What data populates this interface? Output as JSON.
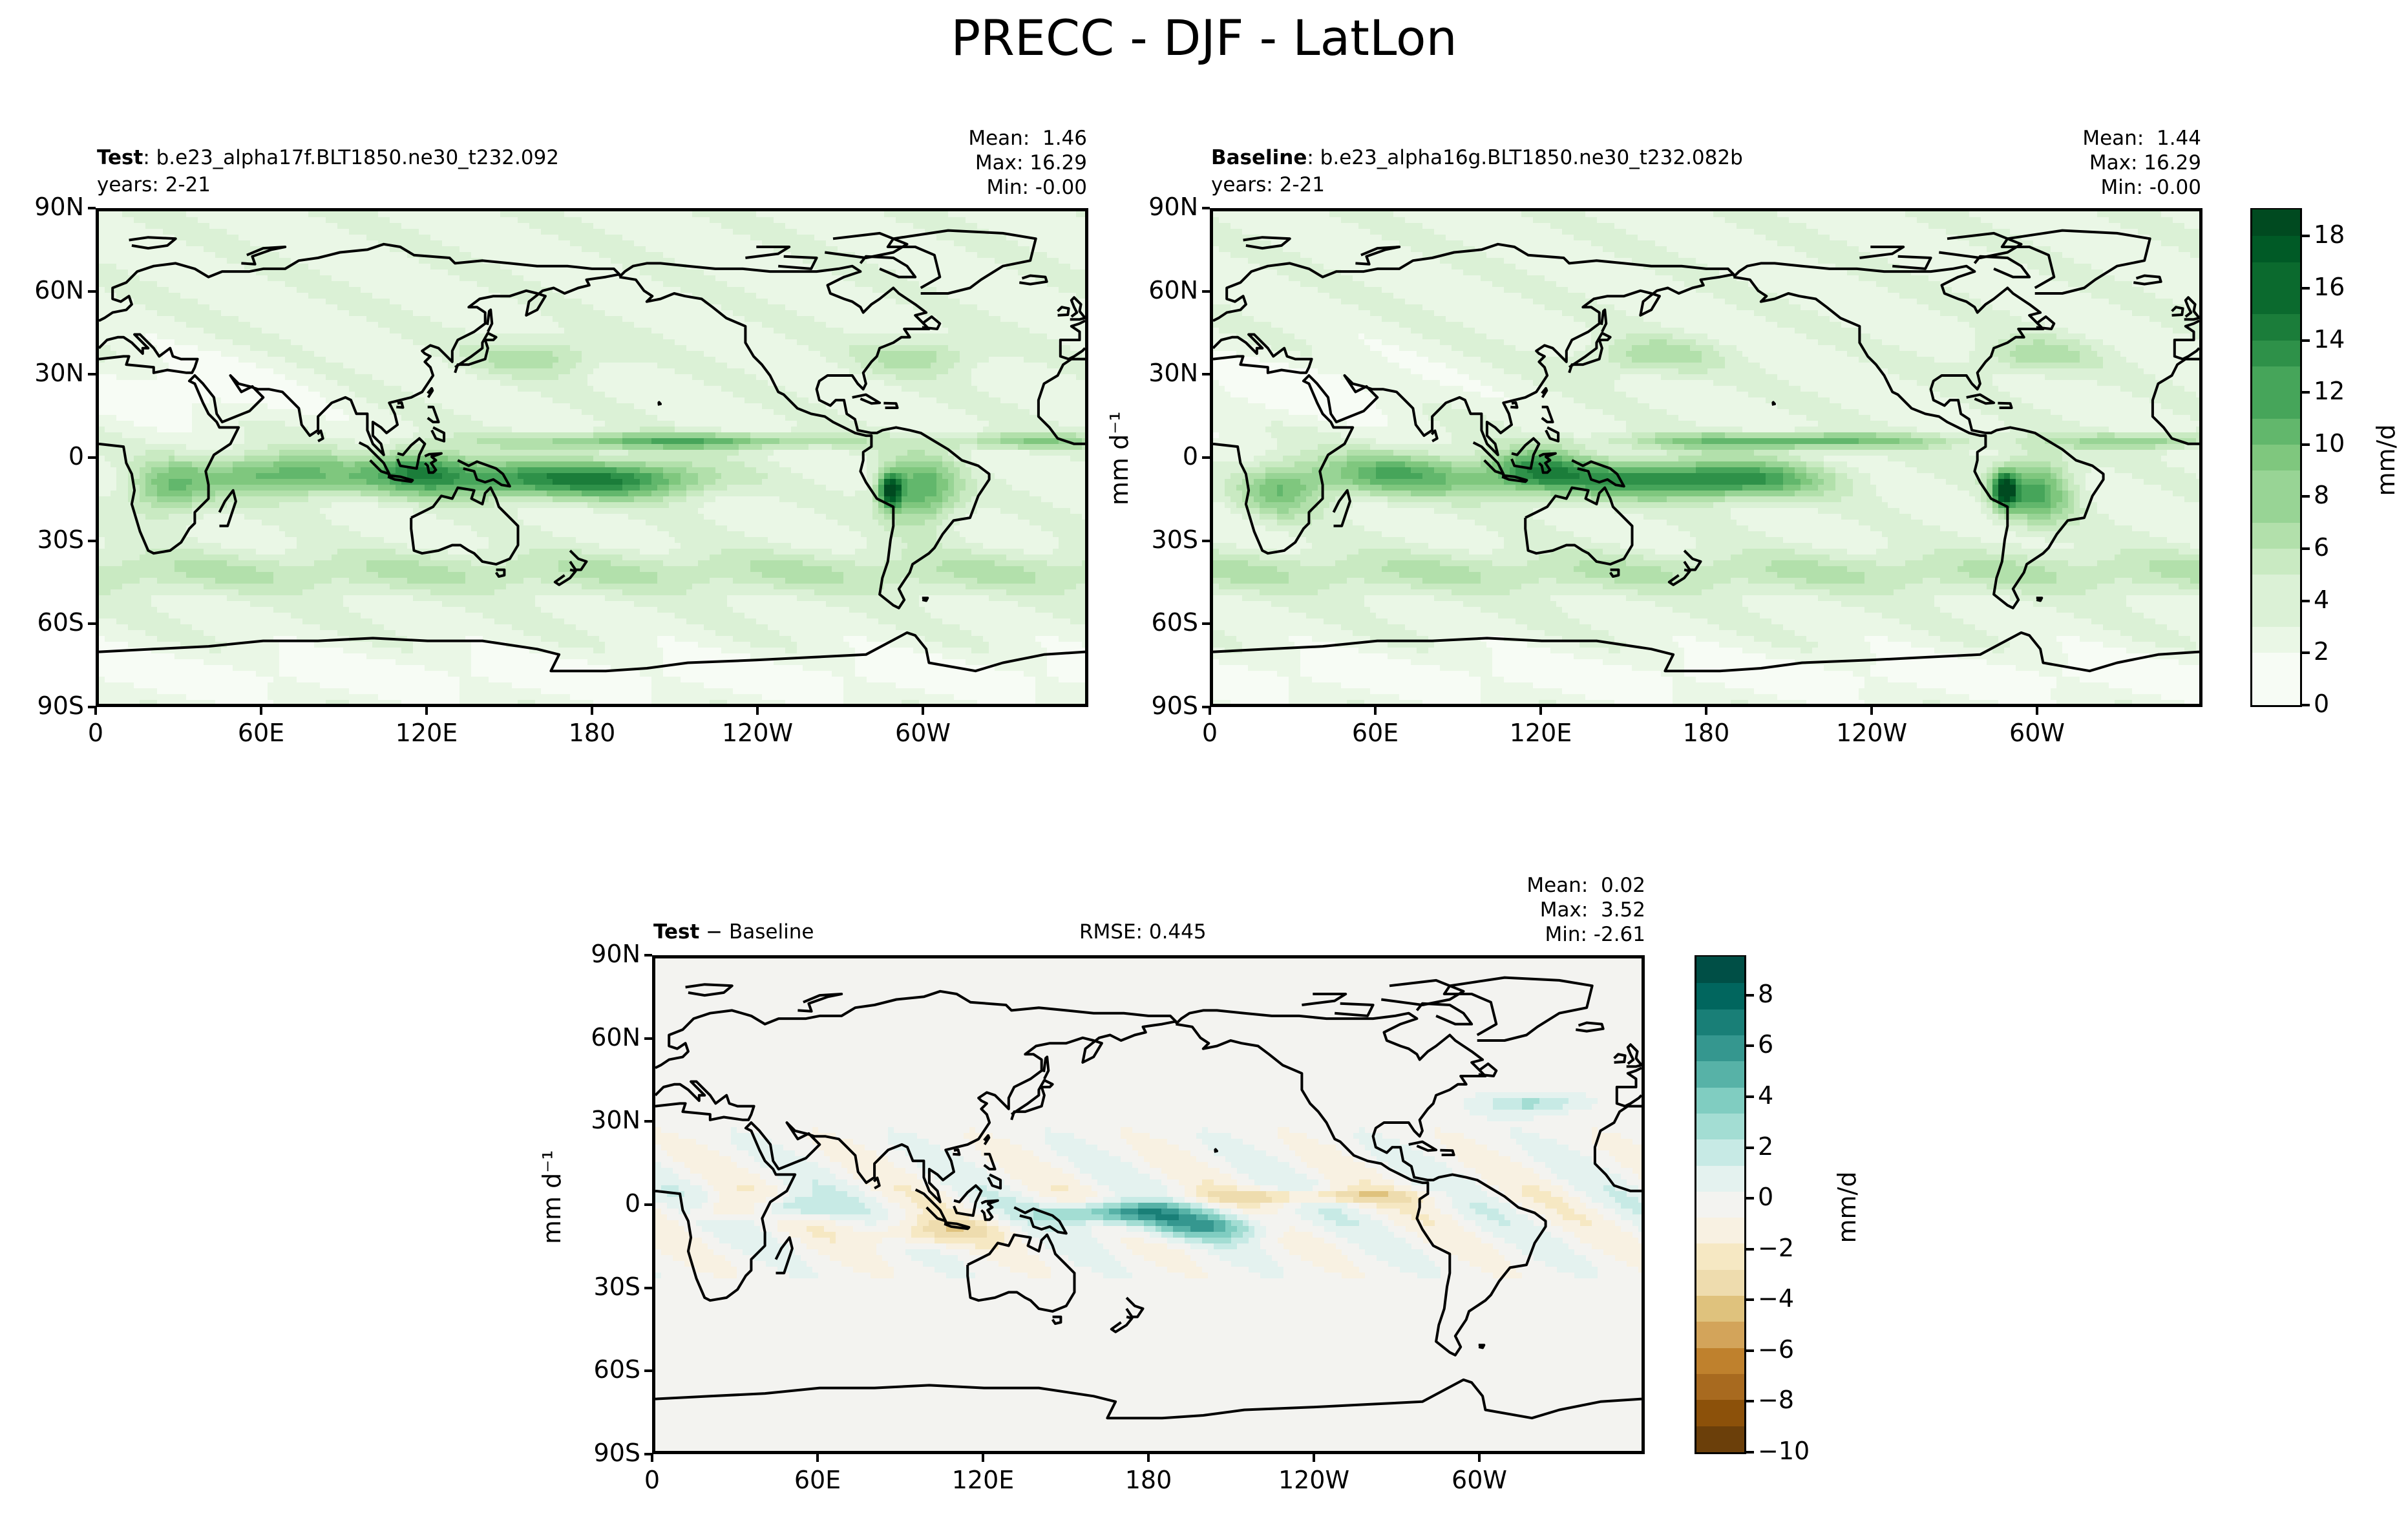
{
  "figure": {
    "title": "PRECC - DJF - LatLon"
  },
  "colors": {
    "precip": [
      "#f7fcf5",
      "#e5f5e0",
      "#c7e9c0",
      "#a1d99b",
      "#74c476",
      "#41ab5d",
      "#238b45",
      "#006d2c",
      "#00441b"
    ],
    "diff": [
      "#543005",
      "#8c510a",
      "#bf812d",
      "#dfc27d",
      "#f6e8c3",
      "#f5f5f5",
      "#c7eae5",
      "#80cdc1",
      "#35978f",
      "#01665e",
      "#003c30"
    ],
    "coast": "#000000"
  },
  "chart_data": [
    {
      "id": "test",
      "type": "heatmap",
      "title_bold": "Test",
      "title_rest": ": b.e23_alpha17f.BLT1850.ne30_t232.092",
      "subtitle": "years: 2-21",
      "stats": {
        "mean": "Mean:  1.46",
        "max": "Max: 16.29",
        "min": "Min: -0.00"
      },
      "xticks": [
        "0",
        "60E",
        "120E",
        "180",
        "120W",
        "60W"
      ],
      "yticks": [
        "90N",
        "60N",
        "30N",
        "0",
        "30S",
        "60S",
        "90S"
      ],
      "xlim": [
        0,
        360
      ],
      "ylim": [
        -90,
        90
      ]
    },
    {
      "id": "baseline",
      "type": "heatmap",
      "title_bold": "Baseline",
      "title_rest": ": b.e23_alpha16g.BLT1850.ne30_t232.082b",
      "subtitle": "years: 2-21",
      "stats": {
        "mean": "Mean:  1.44",
        "max": "Max: 16.29",
        "min": "Min: -0.00"
      },
      "ylabel": "mm d⁻¹",
      "xticks": [
        "0",
        "60E",
        "120E",
        "180",
        "120W",
        "60W"
      ],
      "yticks": [
        "90N",
        "60N",
        "30N",
        "0",
        "30S",
        "60S",
        "90S"
      ],
      "xlim": [
        0,
        360
      ],
      "ylim": [
        -90,
        90
      ],
      "colorbar": {
        "label": "mm/d",
        "ticks": [
          "0",
          "2",
          "4",
          "6",
          "8",
          "10",
          "12",
          "14",
          "16",
          "18"
        ],
        "range": [
          0,
          19
        ]
      }
    },
    {
      "id": "diff",
      "type": "heatmap",
      "title_bold": "Test",
      "title_rest": " − Baseline",
      "rmse": "RMSE: 0.445",
      "stats": {
        "mean": "Mean:  0.02",
        "max": "Max:  3.52",
        "min": "Min: -2.61"
      },
      "ylabel": "mm d⁻¹",
      "xticks": [
        "0",
        "60E",
        "120E",
        "180",
        "120W",
        "60W"
      ],
      "yticks": [
        "90N",
        "60N",
        "30N",
        "0",
        "30S",
        "60S",
        "90S"
      ],
      "xlim": [
        0,
        360
      ],
      "ylim": [
        -90,
        90
      ],
      "colorbar": {
        "label": "mm/d",
        "ticks": [
          "−10",
          "−8",
          "−6",
          "−4",
          "−2",
          "0",
          "2",
          "4",
          "6",
          "8"
        ],
        "range": [
          -10,
          9.5
        ]
      }
    }
  ]
}
